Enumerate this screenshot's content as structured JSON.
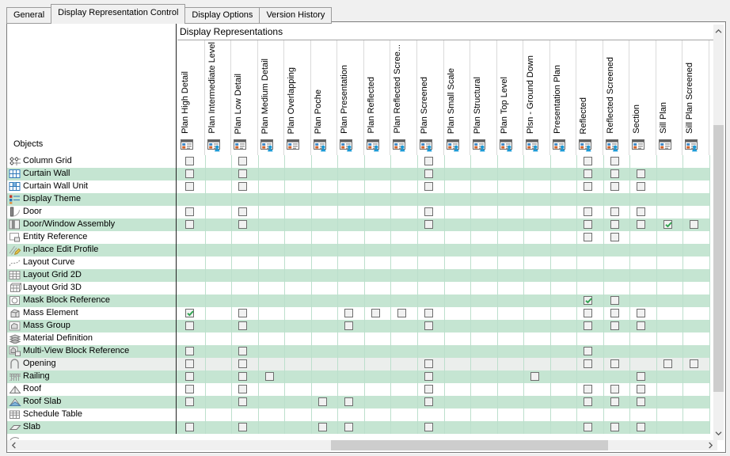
{
  "tabs": [
    {
      "label": "General",
      "active": false
    },
    {
      "label": "Display Representation Control",
      "active": true
    },
    {
      "label": "Display Options",
      "active": false
    },
    {
      "label": "Version History",
      "active": false
    }
  ],
  "panel": {
    "header_title": "Display Representations",
    "objects_label": "Objects",
    "columns": [
      {
        "label": "Plan High Detail",
        "person": false
      },
      {
        "label": "Plan Intermediate Level",
        "person": true
      },
      {
        "label": "Plan Low Detail",
        "person": false
      },
      {
        "label": "Plan Medium Detail",
        "person": true
      },
      {
        "label": "Plan Overlapping",
        "person": false
      },
      {
        "label": "Plan Poche",
        "person": true
      },
      {
        "label": "Plan Presentation",
        "person": true
      },
      {
        "label": "Plan Reflected",
        "person": true
      },
      {
        "label": "Plan Reflected Scree...",
        "person": true
      },
      {
        "label": "Plan Screened",
        "person": true
      },
      {
        "label": "Plan Small Scale",
        "person": true
      },
      {
        "label": "Plan Structural",
        "person": true
      },
      {
        "label": "Plan Top Level",
        "person": true
      },
      {
        "label": "Plsn - Ground Down",
        "person": true
      },
      {
        "label": "Presentation Plan",
        "person": true
      },
      {
        "label": "Reflected",
        "person": true
      },
      {
        "label": "Reflected Screened",
        "person": true
      },
      {
        "label": "Section",
        "person": false
      },
      {
        "label": "Sill Plan",
        "person": false
      },
      {
        "label": "Sill Plan Screened",
        "person": true
      }
    ],
    "rows": [
      {
        "label": "Column Grid",
        "icon": "column-grid",
        "bg": "white",
        "cells": [
          {
            "col": 0,
            "state": "unchecked"
          },
          {
            "col": 2,
            "state": "unchecked"
          },
          {
            "col": 9,
            "state": "unchecked"
          },
          {
            "col": 15,
            "state": "unchecked"
          },
          {
            "col": 16,
            "state": "unchecked"
          }
        ]
      },
      {
        "label": "Curtain Wall",
        "icon": "curtain-wall",
        "bg": "green",
        "cells": [
          {
            "col": 0,
            "state": "unchecked"
          },
          {
            "col": 2,
            "state": "unchecked"
          },
          {
            "col": 9,
            "state": "unchecked"
          },
          {
            "col": 15,
            "state": "unchecked"
          },
          {
            "col": 16,
            "state": "unchecked"
          },
          {
            "col": 17,
            "state": "unchecked"
          }
        ]
      },
      {
        "label": "Curtain Wall Unit",
        "icon": "curtain-wall-unit",
        "bg": "white",
        "cells": [
          {
            "col": 0,
            "state": "unchecked"
          },
          {
            "col": 2,
            "state": "unchecked"
          },
          {
            "col": 9,
            "state": "unchecked"
          },
          {
            "col": 15,
            "state": "unchecked"
          },
          {
            "col": 16,
            "state": "unchecked"
          },
          {
            "col": 17,
            "state": "unchecked"
          }
        ]
      },
      {
        "label": "Display Theme",
        "icon": "display-theme",
        "bg": "green",
        "cells": []
      },
      {
        "label": "Door",
        "icon": "door",
        "bg": "white",
        "cells": [
          {
            "col": 0,
            "state": "unchecked"
          },
          {
            "col": 2,
            "state": "unchecked"
          },
          {
            "col": 9,
            "state": "unchecked"
          },
          {
            "col": 15,
            "state": "unchecked"
          },
          {
            "col": 16,
            "state": "unchecked"
          },
          {
            "col": 17,
            "state": "unchecked"
          }
        ]
      },
      {
        "label": "Door/Window Assembly",
        "icon": "door-window-assembly",
        "bg": "green",
        "cells": [
          {
            "col": 0,
            "state": "unchecked"
          },
          {
            "col": 2,
            "state": "unchecked"
          },
          {
            "col": 9,
            "state": "unchecked"
          },
          {
            "col": 15,
            "state": "unchecked"
          },
          {
            "col": 16,
            "state": "unchecked"
          },
          {
            "col": 17,
            "state": "unchecked"
          },
          {
            "col": 18,
            "state": "checked"
          },
          {
            "col": 19,
            "state": "unchecked"
          }
        ]
      },
      {
        "label": "Entity Reference",
        "icon": "entity-reference",
        "bg": "white",
        "cells": [
          {
            "col": 15,
            "state": "unchecked"
          },
          {
            "col": 16,
            "state": "unchecked"
          }
        ]
      },
      {
        "label": "In-place Edit Profile",
        "icon": "in-place-edit-profile",
        "bg": "green",
        "cells": []
      },
      {
        "label": "Layout Curve",
        "icon": "layout-curve",
        "bg": "white",
        "cells": []
      },
      {
        "label": "Layout Grid 2D",
        "icon": "layout-grid-2d",
        "bg": "green",
        "cells": []
      },
      {
        "label": "Layout Grid 3D",
        "icon": "layout-grid-3d",
        "bg": "white",
        "cells": []
      },
      {
        "label": "Mask Block Reference",
        "icon": "mask-block-reference",
        "bg": "green",
        "cells": [
          {
            "col": 15,
            "state": "checked"
          },
          {
            "col": 16,
            "state": "unchecked"
          }
        ]
      },
      {
        "label": "Mass Element",
        "icon": "mass-element",
        "bg": "white",
        "cells": [
          {
            "col": 0,
            "state": "checked"
          },
          {
            "col": 2,
            "state": "unchecked"
          },
          {
            "col": 6,
            "state": "unchecked"
          },
          {
            "col": 7,
            "state": "unchecked"
          },
          {
            "col": 8,
            "state": "unchecked"
          },
          {
            "col": 9,
            "state": "unchecked"
          },
          {
            "col": 15,
            "state": "unchecked"
          },
          {
            "col": 16,
            "state": "unchecked"
          },
          {
            "col": 17,
            "state": "unchecked"
          }
        ]
      },
      {
        "label": "Mass Group",
        "icon": "mass-group",
        "bg": "green",
        "cells": [
          {
            "col": 0,
            "state": "unchecked"
          },
          {
            "col": 2,
            "state": "unchecked"
          },
          {
            "col": 6,
            "state": "unchecked"
          },
          {
            "col": 9,
            "state": "unchecked"
          },
          {
            "col": 15,
            "state": "unchecked"
          },
          {
            "col": 16,
            "state": "unchecked"
          },
          {
            "col": 17,
            "state": "unchecked"
          }
        ]
      },
      {
        "label": "Material Definition",
        "icon": "material-definition",
        "bg": "white",
        "cells": []
      },
      {
        "label": "Multi-View Block Reference",
        "icon": "multi-view-block-reference",
        "bg": "green",
        "cells": [
          {
            "col": 0,
            "state": "unchecked"
          },
          {
            "col": 2,
            "state": "unchecked"
          },
          {
            "col": 15,
            "state": "unchecked"
          }
        ]
      },
      {
        "label": "Opening",
        "icon": "opening",
        "bg": "gray",
        "cells": [
          {
            "col": 0,
            "state": "unchecked"
          },
          {
            "col": 2,
            "state": "unchecked"
          },
          {
            "col": 9,
            "state": "unchecked"
          },
          {
            "col": 15,
            "state": "unchecked"
          },
          {
            "col": 16,
            "state": "unchecked"
          },
          {
            "col": 18,
            "state": "unchecked"
          },
          {
            "col": 19,
            "state": "unchecked"
          }
        ]
      },
      {
        "label": "Railing",
        "icon": "railing",
        "bg": "green",
        "cells": [
          {
            "col": 0,
            "state": "unchecked"
          },
          {
            "col": 2,
            "state": "unchecked"
          },
          {
            "col": 3,
            "state": "unchecked"
          },
          {
            "col": 9,
            "state": "unchecked"
          },
          {
            "col": 13,
            "state": "unchecked"
          },
          {
            "col": 17,
            "state": "unchecked"
          }
        ]
      },
      {
        "label": "Roof",
        "icon": "roof",
        "bg": "white",
        "cells": [
          {
            "col": 0,
            "state": "unchecked"
          },
          {
            "col": 2,
            "state": "unchecked"
          },
          {
            "col": 9,
            "state": "unchecked"
          },
          {
            "col": 15,
            "state": "unchecked"
          },
          {
            "col": 16,
            "state": "unchecked"
          },
          {
            "col": 17,
            "state": "unchecked"
          }
        ]
      },
      {
        "label": "Roof Slab",
        "icon": "roof-slab",
        "bg": "green",
        "cells": [
          {
            "col": 0,
            "state": "unchecked"
          },
          {
            "col": 2,
            "state": "unchecked"
          },
          {
            "col": 5,
            "state": "unchecked"
          },
          {
            "col": 6,
            "state": "unchecked"
          },
          {
            "col": 9,
            "state": "unchecked"
          },
          {
            "col": 15,
            "state": "unchecked"
          },
          {
            "col": 16,
            "state": "unchecked"
          },
          {
            "col": 17,
            "state": "unchecked"
          }
        ]
      },
      {
        "label": "Schedule Table",
        "icon": "schedule-table",
        "bg": "white",
        "cells": []
      },
      {
        "label": "Slab",
        "icon": "slab",
        "bg": "green",
        "cells": [
          {
            "col": 0,
            "state": "unchecked"
          },
          {
            "col": 2,
            "state": "unchecked"
          },
          {
            "col": 5,
            "state": "unchecked"
          },
          {
            "col": 6,
            "state": "unchecked"
          },
          {
            "col": 9,
            "state": "unchecked"
          },
          {
            "col": 15,
            "state": "unchecked"
          },
          {
            "col": 16,
            "state": "unchecked"
          },
          {
            "col": 17,
            "state": "unchecked"
          }
        ]
      }
    ]
  },
  "colors": {
    "stripe_green": "#c5e5d2",
    "row_gray": "#ebeeec",
    "grid_line": "#bcdfcc",
    "check_green": "#2fa34f",
    "separator_black": "#222222",
    "header_icon_blue": "#3a87c8",
    "header_icon_orange": "#d2622a",
    "header_user_blue": "#1d9ad6",
    "scrollbar_thumb": "#cdcdcd",
    "scrollbar_track": "#f0f0f0"
  },
  "icons": {
    "scrollbar": [
      "up-chevron-icon",
      "down-chevron-icon",
      "left-chevron-icon",
      "right-chevron-icon"
    ],
    "column_header": [
      "display-representation-icon",
      "display-representation-user-icon"
    ]
  }
}
